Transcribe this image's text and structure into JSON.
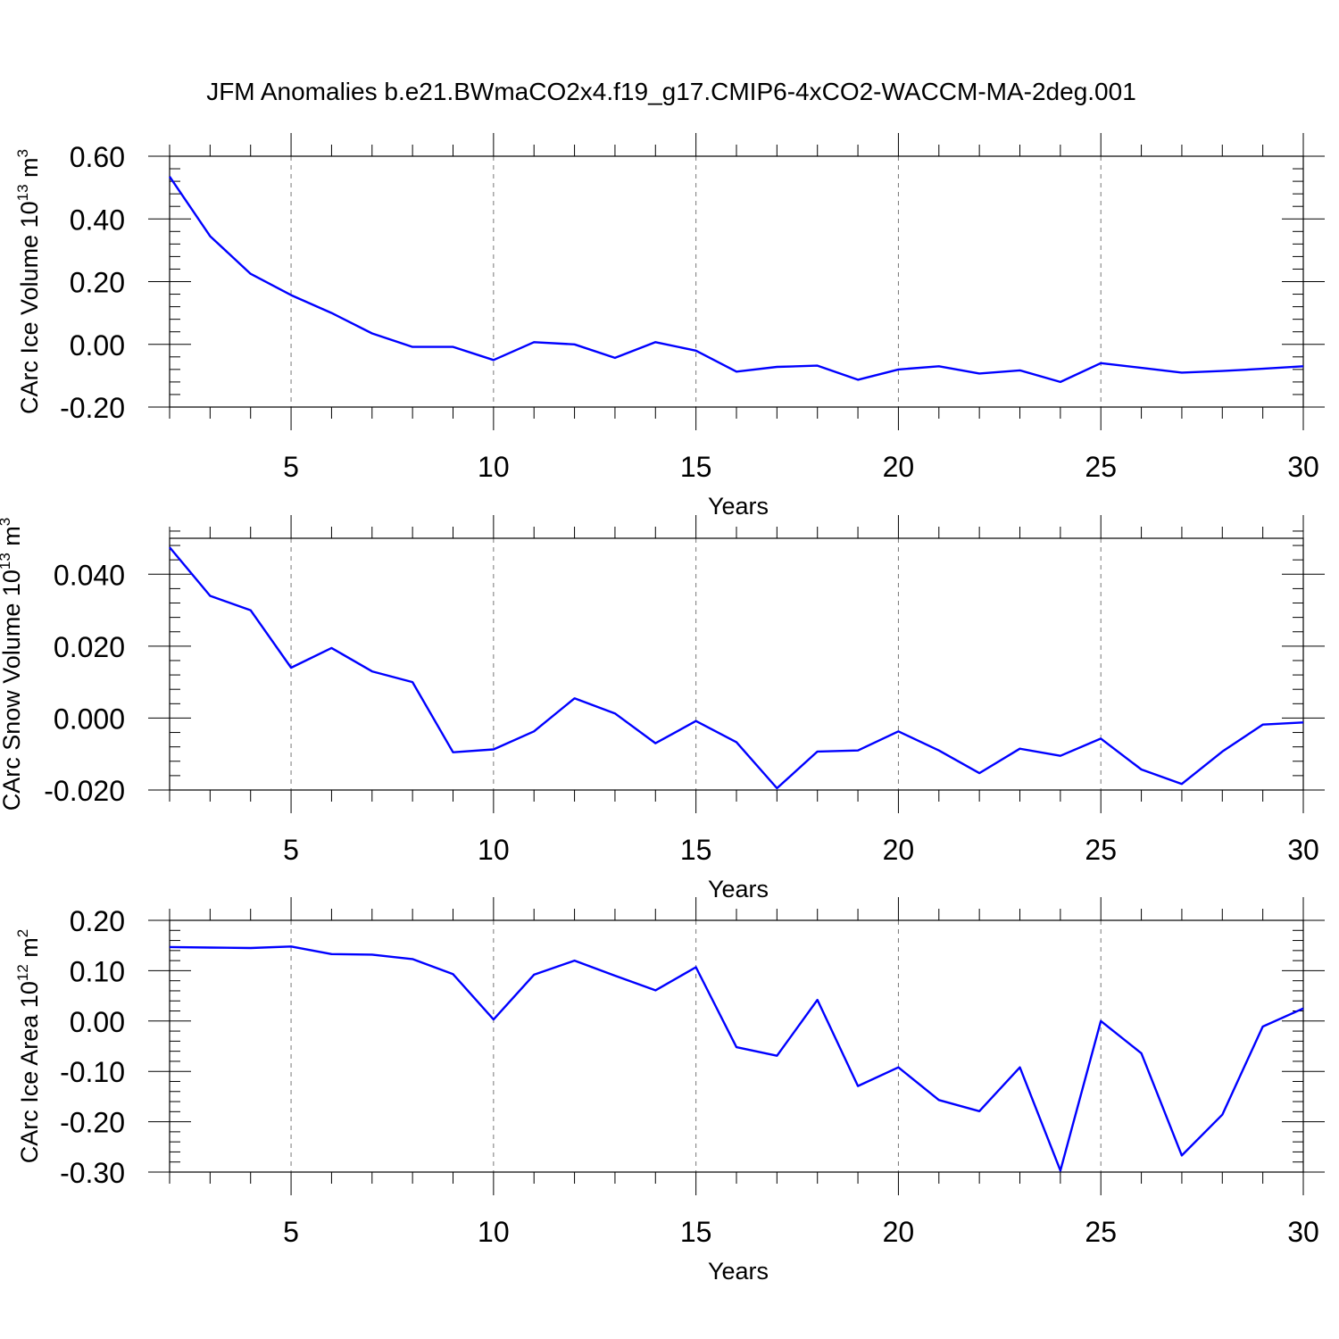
{
  "chart_data": {
    "title": "JFM Anomalies b.e21.BWmaCO2x4.f19_g17.CMIP6-4xCO2-WACCM-MA-2deg.001",
    "line_color": "#0000ff",
    "panels": [
      {
        "type": "line",
        "ylabel": {
          "main": "CArc Ice Volume 10",
          "exp": "13",
          "unit": " m",
          "unit_exp": "3"
        },
        "xlabel": "Years",
        "xlim": [
          2,
          30
        ],
        "ylim": [
          -0.2,
          0.6
        ],
        "xticks": [
          5,
          10,
          15,
          20,
          25,
          30
        ],
        "yticks": [
          -0.2,
          0.0,
          0.2,
          0.4,
          0.6
        ],
        "ytick_labels": [
          "-0.20",
          "0.00",
          "0.20",
          "0.40",
          "0.60"
        ],
        "grid_x": true,
        "x": [
          2,
          3,
          4,
          5,
          6,
          7,
          8,
          9,
          10,
          11,
          12,
          13,
          14,
          15,
          16,
          17,
          18,
          19,
          20,
          21,
          22,
          23,
          24,
          25,
          26,
          27,
          28,
          29,
          30
        ],
        "y": [
          0.535,
          0.345,
          0.225,
          0.157,
          0.1,
          0.035,
          -0.008,
          -0.008,
          -0.05,
          0.007,
          0.0,
          -0.043,
          0.007,
          -0.02,
          -0.087,
          -0.072,
          -0.068,
          -0.113,
          -0.08,
          -0.07,
          -0.093,
          -0.083,
          -0.12,
          -0.06,
          -0.075,
          -0.09,
          -0.085,
          -0.078,
          -0.07
        ]
      },
      {
        "type": "line",
        "ylabel": {
          "main": "CArc Snow Volume 10",
          "exp": "13",
          "unit": " m",
          "unit_exp": "3"
        },
        "xlabel": "Years",
        "xlim": [
          2,
          30
        ],
        "ylim": [
          -0.02,
          0.05
        ],
        "xticks": [
          5,
          10,
          15,
          20,
          25,
          30
        ],
        "yticks": [
          -0.02,
          0.0,
          0.02,
          0.04
        ],
        "ytick_labels": [
          "-0.020",
          "0.000",
          "0.020",
          "0.040"
        ],
        "grid_x": true,
        "x": [
          2,
          3,
          4,
          5,
          6,
          7,
          8,
          9,
          10,
          11,
          12,
          13,
          14,
          15,
          16,
          17,
          18,
          19,
          20,
          21,
          22,
          23,
          24,
          25,
          26,
          27,
          28,
          29,
          30
        ],
        "y": [
          0.0475,
          0.034,
          0.03,
          0.014,
          0.0195,
          0.013,
          0.01,
          -0.0095,
          -0.0087,
          -0.0037,
          0.0055,
          0.0013,
          -0.007,
          -0.0008,
          -0.0067,
          -0.0195,
          -0.0093,
          -0.009,
          -0.0037,
          -0.009,
          -0.0153,
          -0.0085,
          -0.0105,
          -0.0057,
          -0.0143,
          -0.0183,
          -0.0093,
          -0.0018,
          -0.0012
        ]
      },
      {
        "type": "line",
        "ylabel": {
          "main": "CArc Ice Area 10",
          "exp": "12",
          "unit": " m",
          "unit_exp": "2"
        },
        "xlabel": "Years",
        "xlim": [
          2,
          30
        ],
        "ylim": [
          -0.3,
          0.2
        ],
        "xticks": [
          5,
          10,
          15,
          20,
          25,
          30
        ],
        "yticks": [
          -0.3,
          -0.2,
          -0.1,
          0.0,
          0.1,
          0.2
        ],
        "ytick_labels": [
          "-0.30",
          "-0.20",
          "-0.10",
          "0.00",
          "0.10",
          "0.20"
        ],
        "grid_x": true,
        "x": [
          2,
          3,
          4,
          5,
          6,
          7,
          8,
          9,
          10,
          11,
          12,
          13,
          14,
          15,
          16,
          17,
          18,
          19,
          20,
          21,
          22,
          23,
          24,
          25,
          26,
          27,
          28,
          29,
          30
        ],
        "y": [
          0.147,
          0.146,
          0.145,
          0.148,
          0.133,
          0.132,
          0.123,
          0.093,
          0.003,
          0.092,
          0.12,
          0.09,
          0.061,
          0.107,
          -0.052,
          -0.069,
          0.042,
          -0.129,
          -0.092,
          -0.157,
          -0.179,
          -0.092,
          -0.297,
          0.0,
          -0.064,
          -0.267,
          -0.186,
          -0.011,
          0.025
        ]
      }
    ]
  }
}
